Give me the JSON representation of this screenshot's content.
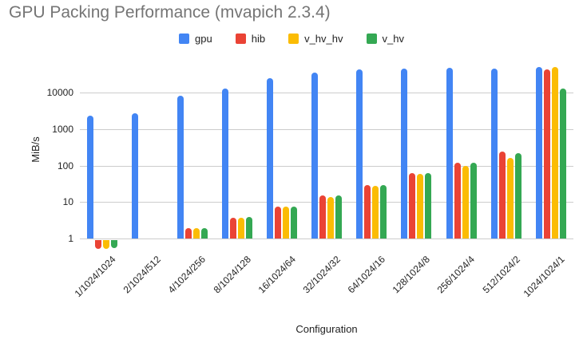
{
  "title": "GPU Packing Performance (mvapich 2.3.4)",
  "legend": [
    {
      "label": "gpu",
      "color": "#4285F4",
      "icon": "legend-swatch-blue"
    },
    {
      "label": "hib",
      "color": "#EA4335",
      "icon": "legend-swatch-red"
    },
    {
      "label": "v_hv_hv",
      "color": "#FBBC04",
      "icon": "legend-swatch-yellow"
    },
    {
      "label": "v_hv",
      "color": "#34A853",
      "icon": "legend-swatch-green"
    }
  ],
  "chart_data": {
    "type": "bar",
    "title": "GPU Packing Performance (mvapich 2.3.4)",
    "xlabel": "Configuration",
    "ylabel": "MiB/s",
    "y_scale": "log",
    "y_ticks": [
      1,
      10,
      100,
      1000,
      10000
    ],
    "ylim": [
      0.5,
      70000
    ],
    "grid": true,
    "legend_position": "top",
    "categories": [
      "1/1024/1024",
      "2/1024/512",
      "4/1024/256",
      "8/1024/128",
      "16/1024/64",
      "32/1024/32",
      "64/1024/16",
      "128/1024/8",
      "256/1024/4",
      "512/1024/2",
      "1024/1024/1"
    ],
    "series": [
      {
        "name": "gpu",
        "color": "#4285F4",
        "values": [
          2300,
          2700,
          8100,
          13000,
          25000,
          35000,
          43000,
          45000,
          48000,
          45000,
          50000
        ]
      },
      {
        "name": "hib",
        "color": "#EA4335",
        "values": [
          0.55,
          null,
          1.9,
          3.8,
          7.5,
          15.5,
          30,
          63,
          120,
          240,
          43000
        ]
      },
      {
        "name": "v_hv_hv",
        "color": "#FBBC04",
        "values": [
          0.55,
          null,
          1.9,
          3.7,
          7.4,
          14,
          28,
          60,
          100,
          165,
          52000
        ]
      },
      {
        "name": "v_hv",
        "color": "#34A853",
        "values": [
          0.6,
          null,
          1.95,
          3.9,
          7.7,
          15,
          30,
          62,
          120,
          225,
          13000
        ]
      }
    ]
  },
  "colors": {
    "title": "#757575",
    "axis_text": "#222222",
    "gridline": "#cccccc",
    "background": "#ffffff"
  }
}
